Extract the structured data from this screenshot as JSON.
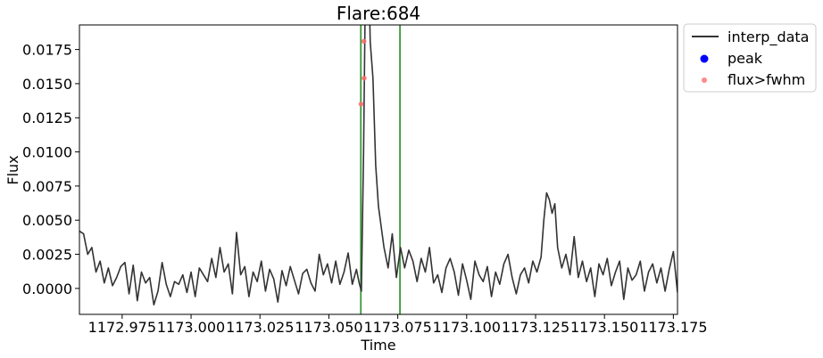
{
  "chart_data": {
    "type": "line",
    "title": "Flare:684",
    "xlabel": "Time",
    "ylabel": "Flux",
    "xlim": [
      1172.9595,
      1173.1765
    ],
    "ylim": [
      -0.0019,
      0.0193
    ],
    "xticks": [
      1172.975,
      1173.0,
      1173.025,
      1173.05,
      1173.075,
      1173.1,
      1173.125,
      1173.15,
      1173.175
    ],
    "xtick_labels": [
      "1172.975",
      "1173.000",
      "1173.025",
      "1173.050",
      "1173.075",
      "1173.100",
      "1173.125",
      "1173.150",
      "1173.175"
    ],
    "yticks": [
      0.0,
      0.0025,
      0.005,
      0.0075,
      0.01,
      0.0125,
      0.015,
      0.0175
    ],
    "ytick_labels": [
      "0.0000",
      "0.0025",
      "0.0050",
      "0.0075",
      "0.0100",
      "0.0125",
      "0.0150",
      "0.0175"
    ],
    "grid": false,
    "legend": "outside-top-right",
    "vertical_lines": [
      1173.0616,
      1173.0758
    ],
    "series": [
      {
        "name": "interp_data",
        "kind": "line",
        "color": "#333333",
        "x": [
          1172.9595,
          1172.961,
          1172.9625,
          1172.964,
          1172.9655,
          1172.967,
          1172.9685,
          1172.97,
          1172.9715,
          1172.973,
          1172.9745,
          1172.976,
          1172.9775,
          1172.979,
          1172.9805,
          1172.982,
          1172.9835,
          1172.985,
          1172.9865,
          1172.988,
          1172.9895,
          1172.991,
          1172.9925,
          1172.994,
          1172.9955,
          1172.997,
          1172.9985,
          1173.0,
          1173.0015,
          1173.003,
          1173.0045,
          1173.006,
          1173.0075,
          1173.009,
          1173.0105,
          1173.012,
          1173.0135,
          1173.015,
          1173.0165,
          1173.018,
          1173.0195,
          1173.021,
          1173.0225,
          1173.024,
          1173.0255,
          1173.027,
          1173.0285,
          1173.03,
          1173.0315,
          1173.033,
          1173.0345,
          1173.036,
          1173.0375,
          1173.039,
          1173.0405,
          1173.042,
          1173.0435,
          1173.045,
          1173.0465,
          1173.048,
          1173.0495,
          1173.051,
          1173.0525,
          1173.054,
          1173.0555,
          1173.057,
          1173.0585,
          1173.06,
          1173.061,
          1173.0618,
          1173.0626,
          1173.0634,
          1173.0642,
          1173.065,
          1173.066,
          1173.067,
          1173.068,
          1173.069,
          1173.07,
          1173.0715,
          1173.073,
          1173.0745,
          1173.076,
          1173.0775,
          1173.079,
          1173.0805,
          1173.082,
          1173.0835,
          1173.085,
          1173.0865,
          1173.088,
          1173.0895,
          1173.091,
          1173.0925,
          1173.094,
          1173.0955,
          1173.097,
          1173.0985,
          1173.1,
          1173.1015,
          1173.103,
          1173.1045,
          1173.106,
          1173.1075,
          1173.109,
          1173.1105,
          1173.112,
          1173.1135,
          1173.115,
          1173.1165,
          1173.118,
          1173.1195,
          1173.121,
          1173.1225,
          1173.124,
          1173.1255,
          1173.127,
          1173.128,
          1173.129,
          1173.13,
          1173.131,
          1173.132,
          1173.133,
          1173.1345,
          1173.136,
          1173.1375,
          1173.139,
          1173.1405,
          1173.142,
          1173.1435,
          1173.145,
          1173.1465,
          1173.148,
          1173.1495,
          1173.151,
          1173.1525,
          1173.154,
          1173.1555,
          1173.157,
          1173.1585,
          1173.16,
          1173.1615,
          1173.163,
          1173.1645,
          1173.166,
          1173.1675,
          1173.169,
          1173.1705,
          1173.172,
          1173.1735,
          1173.175,
          1173.1765
        ],
        "y": [
          0.0042,
          0.004,
          0.0025,
          0.003,
          0.0012,
          0.002,
          0.0004,
          0.0015,
          0.0002,
          0.0008,
          0.0016,
          0.0019,
          -0.0004,
          0.0017,
          -0.0009,
          0.0012,
          0.0004,
          0.0008,
          -0.0012,
          -0.0002,
          0.0019,
          0.0003,
          -0.0006,
          0.0005,
          0.0003,
          0.001,
          -0.0003,
          0.0012,
          -0.0006,
          0.0015,
          0.001,
          0.0005,
          0.0022,
          0.0008,
          0.003,
          0.0012,
          0.0018,
          -0.0004,
          0.0041,
          0.001,
          0.0016,
          -0.0006,
          0.0012,
          0.0005,
          0.002,
          -0.0002,
          0.0014,
          0.0007,
          -0.001,
          0.0013,
          0.0002,
          0.0016,
          0.0006,
          -0.0004,
          0.0011,
          0.0014,
          0.0004,
          -0.0002,
          0.0025,
          0.001,
          0.0018,
          0.0004,
          0.002,
          0.0003,
          0.0012,
          0.0026,
          0.0003,
          0.0014,
          0.0004,
          -0.0002,
          0.01,
          0.025,
          0.026,
          0.0181,
          0.0154,
          0.009,
          0.006,
          0.0045,
          0.003,
          0.0015,
          0.004,
          0.0008,
          0.003,
          0.0015,
          0.0028,
          0.002,
          0.0005,
          0.0022,
          0.0012,
          0.003,
          0.0004,
          0.001,
          -0.0003,
          0.0015,
          0.0022,
          0.0012,
          -0.0005,
          0.0018,
          0.0006,
          -0.0008,
          0.002,
          0.001,
          0.0005,
          0.0016,
          -0.0006,
          0.0012,
          0.0003,
          0.0018,
          0.0025,
          0.0008,
          -0.0004,
          0.001,
          0.0015,
          0.0004,
          0.002,
          0.0012,
          0.0023,
          0.005,
          0.007,
          0.0065,
          0.0055,
          0.0062,
          0.003,
          0.0015,
          0.0025,
          0.001,
          0.0038,
          0.0008,
          0.002,
          0.0005,
          0.0015,
          -0.0006,
          0.0018,
          0.001,
          0.0022,
          0.0002,
          0.0012,
          0.002,
          -0.0008,
          0.0015,
          0.0006,
          0.001,
          0.002,
          -0.0002,
          0.0012,
          0.0018,
          0.0004,
          0.0015,
          -0.0002,
          0.0014,
          0.0027,
          -0.0003
        ]
      },
      {
        "name": "peak",
        "kind": "scatter",
        "color": "#0000ff",
        "x": [],
        "y": []
      },
      {
        "name": "flux>fwhm",
        "kind": "scatter",
        "color": "#ff6b6b",
        "x": [
          1173.0617,
          1173.0627,
          1173.0628
        ],
        "y": [
          0.0135,
          0.0181,
          0.0154
        ]
      }
    ]
  }
}
